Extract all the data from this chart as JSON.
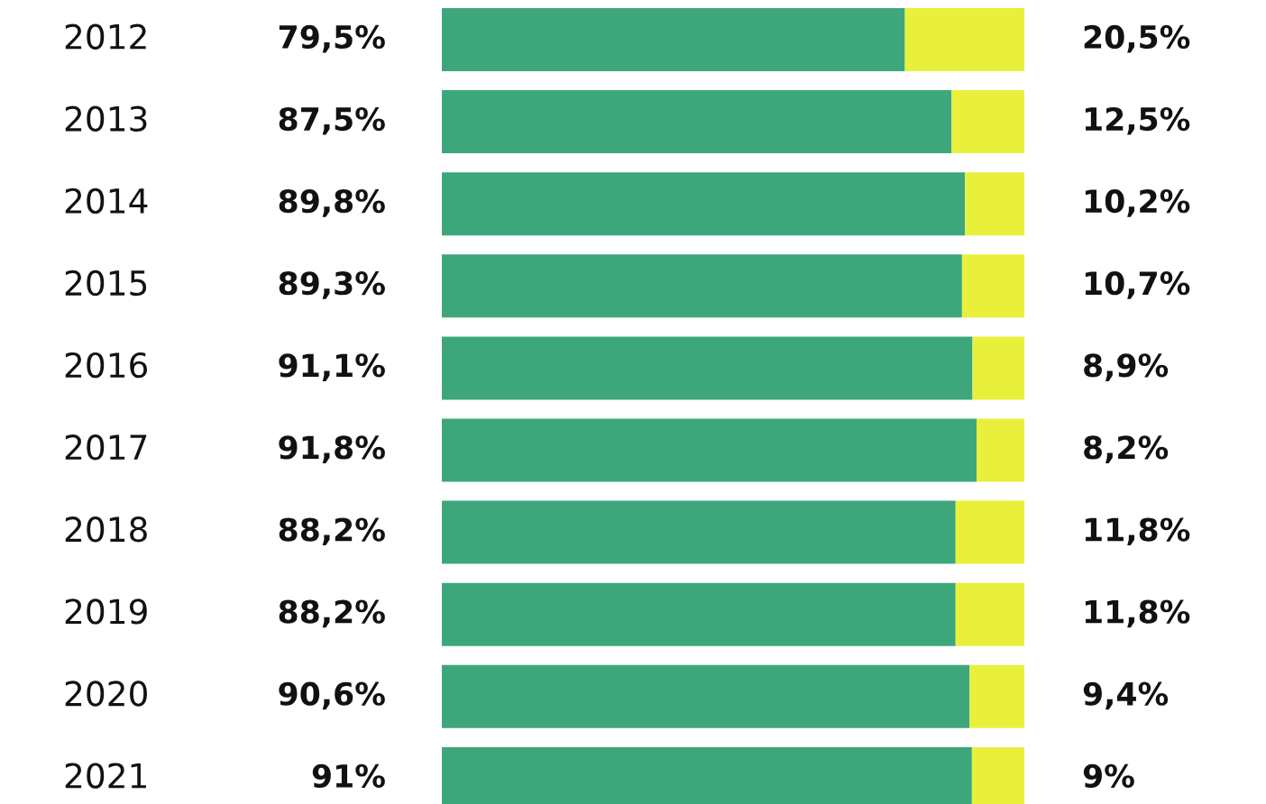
{
  "chart_data": {
    "type": "bar",
    "orientation": "horizontal",
    "stacked": true,
    "categories": [
      "2012",
      "2013",
      "2014",
      "2015",
      "2016",
      "2017",
      "2018",
      "2019",
      "2020",
      "2021"
    ],
    "series": [
      {
        "color": "#3da77b",
        "values": [
          79.5,
          87.5,
          89.8,
          89.3,
          91.1,
          91.8,
          88.2,
          88.2,
          90.6,
          91
        ],
        "value_labels": [
          "79,5%",
          "87,5%",
          "89,8%",
          "89,3%",
          "91,1%",
          "91,8%",
          "88,2%",
          "88,2%",
          "90,6%",
          "91%"
        ]
      },
      {
        "color": "#e8f03c",
        "values": [
          20.5,
          12.5,
          10.2,
          10.7,
          8.9,
          8.2,
          11.8,
          11.8,
          9.4,
          9
        ],
        "value_labels": [
          "20,5%",
          "12,5%",
          "10,2%",
          "10,7%",
          "8,9%",
          "8,2%",
          "11,8%",
          "11,8%",
          "9,4%",
          "9%"
        ]
      }
    ],
    "legend": false
  }
}
